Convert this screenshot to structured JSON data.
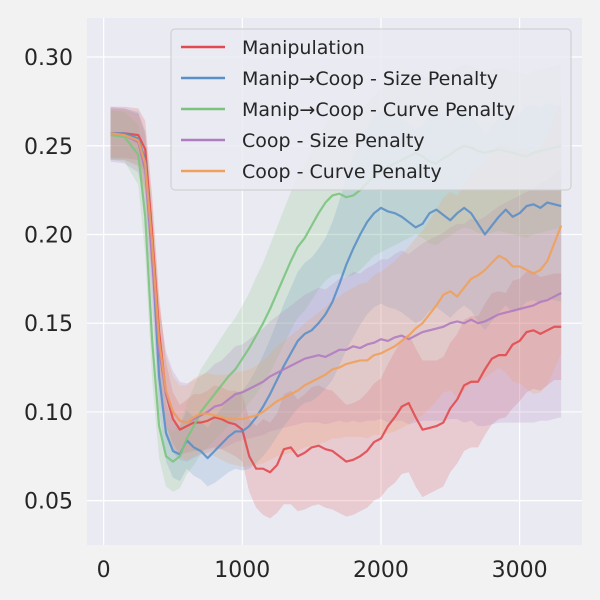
{
  "chart_data": {
    "type": "line",
    "title": "",
    "xlabel": "",
    "ylabel": "",
    "xlim": [
      -120,
      3450
    ],
    "ylim": [
      0.025,
      0.322
    ],
    "xticks": [
      0,
      1000,
      2000,
      3000
    ],
    "xtick_labels": [
      "0",
      "1000",
      "2000",
      "3000"
    ],
    "yticks": [
      0.05,
      0.1,
      0.15,
      0.2,
      0.25,
      0.3
    ],
    "ytick_labels": [
      "0.05",
      "0.10",
      "0.15",
      "0.20",
      "0.25",
      "0.30"
    ],
    "grid": true,
    "legend_position": "upper-right",
    "colors": {
      "background": "#eaeaf2",
      "page": "#f2f2f2",
      "grid": "#ffffff"
    },
    "x": [
      50,
      150,
      250,
      300,
      350,
      400,
      450,
      500,
      550,
      600,
      650,
      700,
      750,
      800,
      850,
      900,
      950,
      1000,
      1050,
      1100,
      1150,
      1200,
      1250,
      1300,
      1350,
      1400,
      1450,
      1500,
      1550,
      1600,
      1650,
      1700,
      1750,
      1800,
      1850,
      1900,
      1950,
      2000,
      2050,
      2100,
      2150,
      2200,
      2250,
      2300,
      2350,
      2400,
      2450,
      2500,
      2550,
      2600,
      2650,
      2700,
      2750,
      2800,
      2850,
      2900,
      2950,
      3000,
      3050,
      3100,
      3150,
      3200,
      3250,
      3300
    ],
    "series": [
      {
        "name": "Manipulation",
        "color": "#e24a4f",
        "values": [
          0.257,
          0.257,
          0.256,
          0.248,
          0.2,
          0.145,
          0.11,
          0.096,
          0.09,
          0.092,
          0.094,
          0.094,
          0.095,
          0.097,
          0.096,
          0.094,
          0.093,
          0.09,
          0.075,
          0.068,
          0.068,
          0.066,
          0.07,
          0.079,
          0.08,
          0.075,
          0.077,
          0.08,
          0.081,
          0.079,
          0.078,
          0.075,
          0.072,
          0.073,
          0.075,
          0.078,
          0.083,
          0.085,
          0.092,
          0.097,
          0.103,
          0.105,
          0.097,
          0.09,
          0.091,
          0.092,
          0.094,
          0.102,
          0.107,
          0.115,
          0.117,
          0.117,
          0.124,
          0.13,
          0.132,
          0.132,
          0.138,
          0.14,
          0.145,
          0.146,
          0.144,
          0.146,
          0.148,
          0.148
        ],
        "lower": [
          0.243,
          0.243,
          0.242,
          0.232,
          0.18,
          0.125,
          0.093,
          0.082,
          0.076,
          0.077,
          0.078,
          0.078,
          0.079,
          0.08,
          0.079,
          0.077,
          0.075,
          0.072,
          0.055,
          0.046,
          0.042,
          0.04,
          0.043,
          0.048,
          0.048,
          0.044,
          0.045,
          0.047,
          0.048,
          0.046,
          0.045,
          0.043,
          0.041,
          0.042,
          0.044,
          0.046,
          0.05,
          0.052,
          0.057,
          0.06,
          0.065,
          0.066,
          0.058,
          0.052,
          0.054,
          0.056,
          0.058,
          0.066,
          0.071,
          0.078,
          0.08,
          0.08,
          0.087,
          0.093,
          0.096,
          0.097,
          0.102,
          0.106,
          0.111,
          0.113,
          0.112,
          0.115,
          0.118,
          0.118
        ],
        "upper": [
          0.272,
          0.272,
          0.271,
          0.264,
          0.222,
          0.166,
          0.128,
          0.111,
          0.104,
          0.107,
          0.11,
          0.11,
          0.112,
          0.115,
          0.114,
          0.112,
          0.112,
          0.11,
          0.096,
          0.092,
          0.096,
          0.094,
          0.099,
          0.11,
          0.112,
          0.107,
          0.11,
          0.114,
          0.115,
          0.113,
          0.112,
          0.108,
          0.104,
          0.105,
          0.107,
          0.111,
          0.116,
          0.119,
          0.127,
          0.134,
          0.141,
          0.144,
          0.136,
          0.129,
          0.129,
          0.129,
          0.131,
          0.139,
          0.144,
          0.152,
          0.154,
          0.154,
          0.161,
          0.167,
          0.168,
          0.167,
          0.174,
          0.175,
          0.179,
          0.179,
          0.176,
          0.177,
          0.178,
          0.178
        ]
      },
      {
        "name": "Manip→Coop - Size Penalty",
        "color": "#5b8fc7",
        "values": [
          0.257,
          0.257,
          0.254,
          0.242,
          0.19,
          0.12,
          0.088,
          0.078,
          0.076,
          0.084,
          0.08,
          0.078,
          0.074,
          0.078,
          0.082,
          0.086,
          0.089,
          0.089,
          0.092,
          0.097,
          0.103,
          0.11,
          0.118,
          0.126,
          0.133,
          0.14,
          0.144,
          0.146,
          0.15,
          0.155,
          0.162,
          0.172,
          0.183,
          0.192,
          0.2,
          0.207,
          0.212,
          0.215,
          0.213,
          0.212,
          0.21,
          0.207,
          0.204,
          0.206,
          0.212,
          0.214,
          0.211,
          0.208,
          0.212,
          0.215,
          0.212,
          0.206,
          0.2,
          0.205,
          0.21,
          0.214,
          0.21,
          0.212,
          0.216,
          0.217,
          0.215,
          0.218,
          0.217,
          0.216
        ],
        "lower": [
          0.242,
          0.242,
          0.239,
          0.225,
          0.168,
          0.1,
          0.072,
          0.063,
          0.061,
          0.068,
          0.064,
          0.062,
          0.058,
          0.06,
          0.063,
          0.066,
          0.068,
          0.067,
          0.068,
          0.071,
          0.075,
          0.08,
          0.086,
          0.092,
          0.097,
          0.102,
          0.105,
          0.106,
          0.109,
          0.113,
          0.118,
          0.126,
          0.135,
          0.142,
          0.149,
          0.155,
          0.159,
          0.161,
          0.159,
          0.158,
          0.156,
          0.153,
          0.15,
          0.152,
          0.157,
          0.159,
          0.156,
          0.153,
          0.157,
          0.16,
          0.157,
          0.151,
          0.146,
          0.151,
          0.156,
          0.16,
          0.156,
          0.158,
          0.162,
          0.163,
          0.161,
          0.164,
          0.163,
          0.162
        ],
        "upper": [
          0.271,
          0.271,
          0.269,
          0.258,
          0.212,
          0.141,
          0.105,
          0.094,
          0.092,
          0.101,
          0.097,
          0.095,
          0.091,
          0.097,
          0.102,
          0.107,
          0.111,
          0.112,
          0.117,
          0.124,
          0.132,
          0.141,
          0.151,
          0.161,
          0.17,
          0.179,
          0.184,
          0.187,
          0.192,
          0.198,
          0.207,
          0.219,
          0.232,
          0.243,
          0.252,
          0.26,
          0.266,
          0.27,
          0.268,
          0.267,
          0.265,
          0.262,
          0.259,
          0.261,
          0.268,
          0.27,
          0.267,
          0.264,
          0.268,
          0.271,
          0.268,
          0.262,
          0.256,
          0.261,
          0.266,
          0.27,
          0.266,
          0.268,
          0.272,
          0.273,
          0.271,
          0.274,
          0.273,
          0.272
        ]
      },
      {
        "name": "Manip→Coop - Curve Penalty",
        "color": "#7cc47e",
        "values": [
          0.256,
          0.255,
          0.245,
          0.21,
          0.14,
          0.092,
          0.075,
          0.072,
          0.075,
          0.085,
          0.092,
          0.1,
          0.105,
          0.11,
          0.115,
          0.12,
          0.124,
          0.13,
          0.136,
          0.143,
          0.15,
          0.158,
          0.167,
          0.176,
          0.185,
          0.193,
          0.198,
          0.205,
          0.212,
          0.218,
          0.222,
          0.223,
          0.221,
          0.222,
          0.225,
          0.229,
          0.233,
          0.236,
          0.238,
          0.24,
          0.242,
          0.244,
          0.246,
          0.244,
          0.241,
          0.24,
          0.243,
          0.245,
          0.248,
          0.25,
          0.249,
          0.247,
          0.246,
          0.247,
          0.248,
          0.247,
          0.246,
          0.245,
          0.244,
          0.246,
          0.247,
          0.248,
          0.249,
          0.25
        ],
        "lower": [
          0.242,
          0.241,
          0.228,
          0.188,
          0.118,
          0.074,
          0.058,
          0.055,
          0.057,
          0.065,
          0.07,
          0.076,
          0.08,
          0.084,
          0.088,
          0.092,
          0.095,
          0.1,
          0.105,
          0.11,
          0.116,
          0.122,
          0.13,
          0.138,
          0.146,
          0.153,
          0.157,
          0.163,
          0.169,
          0.174,
          0.177,
          0.178,
          0.176,
          0.177,
          0.18,
          0.184,
          0.188,
          0.19,
          0.192,
          0.194,
          0.196,
          0.198,
          0.2,
          0.198,
          0.195,
          0.194,
          0.197,
          0.199,
          0.202,
          0.204,
          0.203,
          0.201,
          0.2,
          0.201,
          0.202,
          0.201,
          0.2,
          0.199,
          0.198,
          0.2,
          0.201,
          0.202,
          0.203,
          0.204
        ],
        "upper": [
          0.27,
          0.269,
          0.262,
          0.232,
          0.162,
          0.11,
          0.092,
          0.089,
          0.093,
          0.105,
          0.114,
          0.124,
          0.13,
          0.136,
          0.142,
          0.148,
          0.153,
          0.16,
          0.167,
          0.176,
          0.184,
          0.194,
          0.204,
          0.214,
          0.224,
          0.233,
          0.239,
          0.247,
          0.255,
          0.262,
          0.267,
          0.268,
          0.266,
          0.267,
          0.27,
          0.274,
          0.278,
          0.282,
          0.284,
          0.286,
          0.288,
          0.29,
          0.292,
          0.29,
          0.287,
          0.286,
          0.289,
          0.291,
          0.294,
          0.296,
          0.295,
          0.293,
          0.292,
          0.293,
          0.294,
          0.293,
          0.292,
          0.291,
          0.29,
          0.292,
          0.293,
          0.294,
          0.295,
          0.296
        ]
      },
      {
        "name": "Coop - Size Penalty",
        "color": "#b07cc0",
        "values": [
          0.257,
          0.256,
          0.252,
          0.236,
          0.185,
          0.135,
          0.11,
          0.1,
          0.095,
          0.094,
          0.096,
          0.098,
          0.1,
          0.103,
          0.104,
          0.107,
          0.11,
          0.111,
          0.113,
          0.115,
          0.117,
          0.12,
          0.122,
          0.124,
          0.126,
          0.128,
          0.13,
          0.131,
          0.132,
          0.131,
          0.133,
          0.135,
          0.135,
          0.137,
          0.136,
          0.138,
          0.139,
          0.141,
          0.14,
          0.142,
          0.143,
          0.141,
          0.143,
          0.145,
          0.146,
          0.147,
          0.148,
          0.15,
          0.151,
          0.15,
          0.152,
          0.15,
          0.151,
          0.153,
          0.155,
          0.156,
          0.157,
          0.158,
          0.159,
          0.16,
          0.162,
          0.163,
          0.165,
          0.167
        ],
        "lower": [
          0.241,
          0.24,
          0.235,
          0.216,
          0.16,
          0.11,
          0.086,
          0.077,
          0.073,
          0.072,
          0.074,
          0.076,
          0.077,
          0.079,
          0.079,
          0.081,
          0.083,
          0.084,
          0.085,
          0.086,
          0.087,
          0.089,
          0.09,
          0.091,
          0.092,
          0.093,
          0.094,
          0.094,
          0.094,
          0.093,
          0.094,
          0.095,
          0.094,
          0.095,
          0.094,
          0.095,
          0.095,
          0.096,
          0.094,
          0.095,
          0.095,
          0.093,
          0.094,
          0.095,
          0.095,
          0.095,
          0.095,
          0.096,
          0.096,
          0.094,
          0.095,
          0.092,
          0.092,
          0.093,
          0.094,
          0.094,
          0.094,
          0.094,
          0.094,
          0.094,
          0.095,
          0.095,
          0.096,
          0.097
        ],
        "upper": [
          0.272,
          0.271,
          0.268,
          0.256,
          0.21,
          0.16,
          0.134,
          0.123,
          0.117,
          0.116,
          0.118,
          0.12,
          0.123,
          0.127,
          0.129,
          0.133,
          0.137,
          0.138,
          0.141,
          0.144,
          0.147,
          0.151,
          0.154,
          0.157,
          0.16,
          0.163,
          0.166,
          0.168,
          0.17,
          0.169,
          0.172,
          0.175,
          0.176,
          0.179,
          0.178,
          0.181,
          0.183,
          0.186,
          0.186,
          0.189,
          0.191,
          0.189,
          0.192,
          0.195,
          0.197,
          0.199,
          0.201,
          0.204,
          0.206,
          0.206,
          0.209,
          0.208,
          0.21,
          0.213,
          0.216,
          0.218,
          0.22,
          0.222,
          0.224,
          0.226,
          0.229,
          0.231,
          0.234,
          0.237
        ]
      },
      {
        "name": "Coop - Curve Penalty",
        "color": "#f0a05a",
        "values": [
          0.257,
          0.256,
          0.253,
          0.24,
          0.195,
          0.14,
          0.112,
          0.1,
          0.095,
          0.094,
          0.097,
          0.099,
          0.099,
          0.098,
          0.097,
          0.096,
          0.096,
          0.096,
          0.097,
          0.098,
          0.1,
          0.103,
          0.106,
          0.108,
          0.11,
          0.112,
          0.115,
          0.117,
          0.119,
          0.121,
          0.124,
          0.125,
          0.127,
          0.128,
          0.129,
          0.129,
          0.132,
          0.133,
          0.135,
          0.137,
          0.14,
          0.143,
          0.147,
          0.15,
          0.155,
          0.16,
          0.166,
          0.168,
          0.165,
          0.17,
          0.175,
          0.177,
          0.18,
          0.184,
          0.188,
          0.186,
          0.182,
          0.182,
          0.18,
          0.178,
          0.18,
          0.185,
          0.195,
          0.205
        ],
        "lower": [
          0.243,
          0.242,
          0.238,
          0.222,
          0.172,
          0.118,
          0.092,
          0.08,
          0.075,
          0.073,
          0.075,
          0.077,
          0.076,
          0.075,
          0.073,
          0.071,
          0.07,
          0.069,
          0.07,
          0.07,
          0.071,
          0.073,
          0.075,
          0.076,
          0.077,
          0.078,
          0.08,
          0.081,
          0.082,
          0.083,
          0.085,
          0.085,
          0.086,
          0.086,
          0.086,
          0.085,
          0.087,
          0.087,
          0.088,
          0.089,
          0.091,
          0.093,
          0.096,
          0.098,
          0.102,
          0.106,
          0.111,
          0.112,
          0.108,
          0.112,
          0.116,
          0.117,
          0.119,
          0.122,
          0.125,
          0.122,
          0.117,
          0.116,
          0.113,
          0.11,
          0.111,
          0.115,
          0.124,
          0.133
        ],
        "upper": [
          0.271,
          0.27,
          0.268,
          0.258,
          0.218,
          0.162,
          0.132,
          0.12,
          0.115,
          0.115,
          0.119,
          0.121,
          0.122,
          0.121,
          0.121,
          0.121,
          0.122,
          0.123,
          0.124,
          0.126,
          0.129,
          0.133,
          0.137,
          0.14,
          0.143,
          0.146,
          0.15,
          0.153,
          0.156,
          0.159,
          0.163,
          0.165,
          0.168,
          0.17,
          0.172,
          0.173,
          0.177,
          0.179,
          0.182,
          0.185,
          0.189,
          0.193,
          0.198,
          0.202,
          0.208,
          0.214,
          0.221,
          0.224,
          0.222,
          0.228,
          0.234,
          0.237,
          0.241,
          0.246,
          0.251,
          0.25,
          0.247,
          0.248,
          0.247,
          0.246,
          0.249,
          0.255,
          0.266,
          0.277
        ]
      }
    ]
  }
}
